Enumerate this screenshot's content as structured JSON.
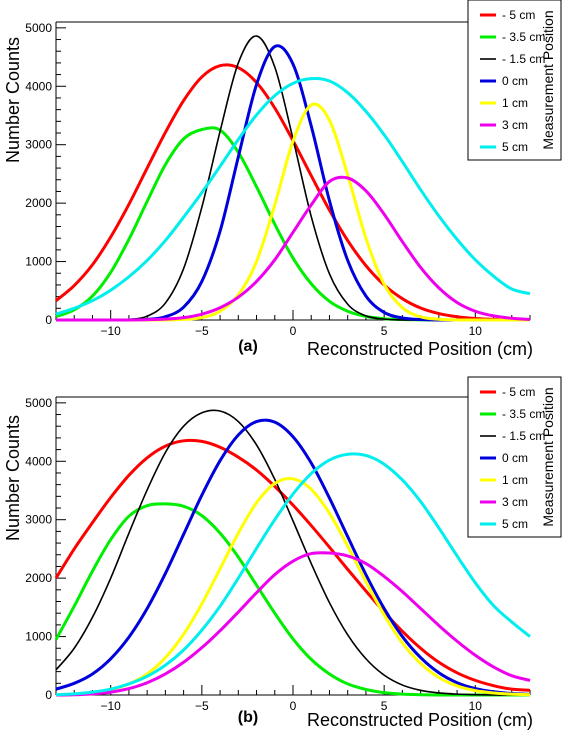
{
  "chart_data": [
    {
      "type": "line",
      "panel_label": "(a)",
      "xlabel": "Reconstructed Position (cm)",
      "ylabel": "Number Counts",
      "xlim": [
        -13,
        13
      ],
      "ylim": [
        0,
        5100
      ],
      "x_ticks": [
        -10,
        -5,
        0,
        5,
        10
      ],
      "y_ticks": [
        0,
        1000,
        2000,
        3000,
        4000,
        5000
      ],
      "grid": false,
      "legend_title": "Measurement Position",
      "legend_position": "top-right",
      "series": [
        {
          "name": "- 5 cm",
          "color": "#ff0000",
          "x": [
            -13,
            -12,
            -11,
            -10,
            -9,
            -8,
            -7,
            -6,
            -5,
            -4,
            -3,
            -2,
            -1,
            0,
            1,
            2,
            3,
            4,
            5,
            6,
            7,
            8,
            9,
            10,
            11,
            12,
            13
          ],
          "y": [
            330,
            590,
            945,
            1420,
            1980,
            2600,
            3210,
            3755,
            4160,
            4352,
            4318,
            4064,
            3628,
            3070,
            2470,
            1880,
            1360,
            930,
            600,
            365,
            205,
            110,
            55,
            25,
            10,
            5,
            0
          ]
        },
        {
          "name": "- 3.5 cm",
          "color": "#00ee00",
          "x": [
            -13,
            -12,
            -11,
            -10,
            -9,
            -8,
            -7,
            -6,
            -5,
            -4,
            -3,
            -2,
            -1,
            0,
            1,
            2,
            3,
            4,
            5,
            6,
            7,
            8,
            9,
            10,
            11,
            12,
            13
          ],
          "y": [
            60,
            175,
            410,
            815,
            1380,
            2030,
            2660,
            3100,
            3260,
            3250,
            2870,
            2280,
            1640,
            1060,
            620,
            320,
            150,
            62,
            22,
            8,
            2,
            0,
            0,
            0,
            0,
            0,
            0
          ]
        },
        {
          "name": "- 1.5 cm",
          "color": "#000000",
          "x": [
            -13,
            -12,
            -11,
            -10,
            -9,
            -8,
            -7,
            -6,
            -5,
            -4,
            -3,
            -2,
            -1,
            0,
            1,
            2,
            3,
            4,
            5,
            6,
            7,
            8,
            9,
            10,
            11,
            12,
            13
          ],
          "y": [
            0,
            0,
            0,
            0,
            10,
            65,
            290,
            880,
            1930,
            3230,
            4400,
            4860,
            4330,
            3100,
            1770,
            790,
            270,
            70,
            15,
            0,
            0,
            0,
            0,
            0,
            0,
            0,
            0
          ]
        },
        {
          "name": "0 cm",
          "color": "#0000dd",
          "x": [
            -13,
            -12,
            -11,
            -10,
            -9,
            -8,
            -7,
            -6,
            -5,
            -4,
            -3,
            -2,
            -1,
            0,
            1,
            2,
            3,
            4,
            5,
            6,
            7,
            8,
            9,
            10,
            11,
            12,
            13
          ],
          "y": [
            0,
            0,
            0,
            0,
            0,
            10,
            55,
            220,
            660,
            1520,
            2790,
            4030,
            4680,
            4380,
            3320,
            2040,
            1020,
            410,
            130,
            35,
            8,
            0,
            0,
            0,
            0,
            0,
            0
          ]
        },
        {
          "name": "1 cm",
          "color": "#ffff00",
          "x": [
            -13,
            -12,
            -11,
            -10,
            -9,
            -8,
            -7,
            -6,
            -5,
            -4,
            -3,
            -2,
            -1,
            0,
            1,
            2,
            3,
            4,
            5,
            6,
            7,
            8,
            9,
            10,
            11,
            12,
            13
          ],
          "y": [
            0,
            0,
            0,
            0,
            0,
            0,
            0,
            10,
            40,
            150,
            430,
            1000,
            1970,
            3060,
            3680,
            3420,
            2480,
            1400,
            610,
            210,
            55,
            12,
            0,
            0,
            0,
            0,
            0
          ]
        },
        {
          "name": "3 cm",
          "color": "#ee00ee",
          "x": [
            -13,
            -12,
            -11,
            -10,
            -9,
            -8,
            -7,
            -6,
            -5,
            -4,
            -3,
            -2,
            -1,
            0,
            1,
            2,
            3,
            4,
            5,
            6,
            7,
            8,
            9,
            10,
            11,
            12,
            13
          ],
          "y": [
            0,
            0,
            0,
            0,
            0,
            5,
            15,
            40,
            100,
            210,
            390,
            660,
            1030,
            1500,
            1970,
            2370,
            2430,
            2210,
            1810,
            1340,
            900,
            550,
            300,
            150,
            70,
            30,
            10
          ]
        },
        {
          "name": "5 cm",
          "color": "#00eeee",
          "x": [
            -13,
            -12,
            -11,
            -10,
            -9,
            -8,
            -7,
            -6,
            -5,
            -4,
            -3,
            -2,
            -1,
            0,
            1,
            2,
            3,
            4,
            5,
            6,
            7,
            8,
            9,
            10,
            11,
            12,
            13
          ],
          "y": [
            100,
            200,
            330,
            510,
            740,
            1020,
            1360,
            1760,
            2180,
            2630,
            3090,
            3510,
            3840,
            4050,
            4130,
            4090,
            3890,
            3570,
            3170,
            2710,
            2230,
            1780,
            1380,
            1030,
            750,
            530,
            450
          ]
        }
      ]
    },
    {
      "type": "line",
      "panel_label": "(b)",
      "xlabel": "Reconstructed Position (cm)",
      "ylabel": "Number Counts",
      "xlim": [
        -13,
        13
      ],
      "ylim": [
        0,
        5100
      ],
      "x_ticks": [
        -10,
        -5,
        0,
        5,
        10
      ],
      "y_ticks": [
        0,
        1000,
        2000,
        3000,
        4000,
        5000
      ],
      "grid": false,
      "legend_title": "Measurement Position",
      "legend_position": "top-right",
      "series": [
        {
          "name": "- 5 cm",
          "color": "#ff0000",
          "x": [
            -13,
            -12,
            -11,
            -10,
            -9,
            -8,
            -7,
            -6,
            -5,
            -4,
            -3,
            -2,
            -1,
            0,
            1,
            2,
            3,
            4,
            5,
            6,
            7,
            8,
            9,
            10,
            11,
            12,
            13
          ],
          "y": [
            2000,
            2500,
            2950,
            3380,
            3760,
            4060,
            4260,
            4350,
            4340,
            4240,
            4070,
            3850,
            3570,
            3250,
            2900,
            2530,
            2150,
            1780,
            1420,
            1090,
            800,
            560,
            380,
            250,
            160,
            100,
            80
          ]
        },
        {
          "name": "- 3.5 cm",
          "color": "#00ee00",
          "x": [
            -13,
            -12,
            -11,
            -10,
            -9,
            -8,
            -7,
            -6,
            -5,
            -4,
            -3,
            -2,
            -1,
            0,
            1,
            2,
            3,
            4,
            5,
            6,
            7,
            8,
            9,
            10,
            11,
            12,
            13
          ],
          "y": [
            950,
            1520,
            2120,
            2660,
            3060,
            3240,
            3270,
            3230,
            3070,
            2770,
            2360,
            1880,
            1400,
            960,
            610,
            360,
            190,
            95,
            40,
            15,
            5,
            0,
            0,
            0,
            0,
            0,
            0
          ]
        },
        {
          "name": "- 1.5 cm",
          "color": "#000000",
          "x": [
            -13,
            -12,
            -11,
            -10,
            -9,
            -8,
            -7,
            -6,
            -5,
            -4,
            -3,
            -2,
            -1,
            0,
            1,
            2,
            3,
            4,
            5,
            6,
            7,
            8,
            9,
            10,
            11,
            12,
            13
          ],
          "y": [
            430,
            800,
            1330,
            2000,
            2770,
            3510,
            4150,
            4600,
            4830,
            4860,
            4680,
            4280,
            3690,
            2980,
            2250,
            1580,
            1030,
            620,
            340,
            170,
            80,
            35,
            15,
            5,
            0,
            0,
            0
          ]
        },
        {
          "name": "0 cm",
          "color": "#0000dd",
          "x": [
            -13,
            -12,
            -11,
            -10,
            -9,
            -8,
            -7,
            -6,
            -5,
            -4,
            -3,
            -2,
            -1,
            0,
            1,
            2,
            3,
            4,
            5,
            6,
            7,
            8,
            9,
            10,
            11,
            12,
            13
          ],
          "y": [
            100,
            200,
            360,
            620,
            990,
            1480,
            2080,
            2750,
            3420,
            4010,
            4450,
            4680,
            4670,
            4420,
            3970,
            3370,
            2710,
            2060,
            1480,
            1000,
            640,
            380,
            210,
            110,
            55,
            25,
            10
          ]
        },
        {
          "name": "1 cm",
          "color": "#ffff00",
          "x": [
            -13,
            -12,
            -11,
            -10,
            -9,
            -8,
            -7,
            -6,
            -5,
            -4,
            -3,
            -2,
            -1,
            0,
            1,
            2,
            3,
            4,
            5,
            6,
            7,
            8,
            9,
            10,
            11,
            12,
            13
          ],
          "y": [
            5,
            15,
            40,
            90,
            190,
            360,
            640,
            1040,
            1560,
            2160,
            2770,
            3290,
            3620,
            3700,
            3520,
            3110,
            2550,
            1940,
            1370,
            890,
            540,
            300,
            155,
            75,
            35,
            15,
            5
          ]
        },
        {
          "name": "3 cm",
          "color": "#ee00ee",
          "x": [
            -13,
            -12,
            -11,
            -10,
            -9,
            -8,
            -7,
            -6,
            -5,
            -4,
            -3,
            -2,
            -1,
            0,
            1,
            2,
            3,
            4,
            5,
            6,
            7,
            8,
            9,
            10,
            11,
            12,
            13
          ],
          "y": [
            0,
            5,
            20,
            50,
            110,
            210,
            360,
            560,
            810,
            1100,
            1420,
            1750,
            2060,
            2290,
            2420,
            2430,
            2380,
            2250,
            2030,
            1770,
            1480,
            1190,
            920,
            680,
            480,
            330,
            250
          ]
        },
        {
          "name": "5 cm",
          "color": "#00eeee",
          "x": [
            -13,
            -12,
            -11,
            -10,
            -9,
            -8,
            -7,
            -6,
            -5,
            -4,
            -3,
            -2,
            -1,
            0,
            1,
            2,
            3,
            4,
            5,
            6,
            7,
            8,
            9,
            10,
            11,
            12,
            13
          ],
          "y": [
            5,
            20,
            50,
            100,
            190,
            320,
            510,
            770,
            1110,
            1520,
            2000,
            2510,
            3000,
            3440,
            3790,
            4020,
            4120,
            4100,
            3950,
            3680,
            3310,
            2860,
            2380,
            1920,
            1530,
            1250,
            1000
          ]
        }
      ]
    }
  ]
}
